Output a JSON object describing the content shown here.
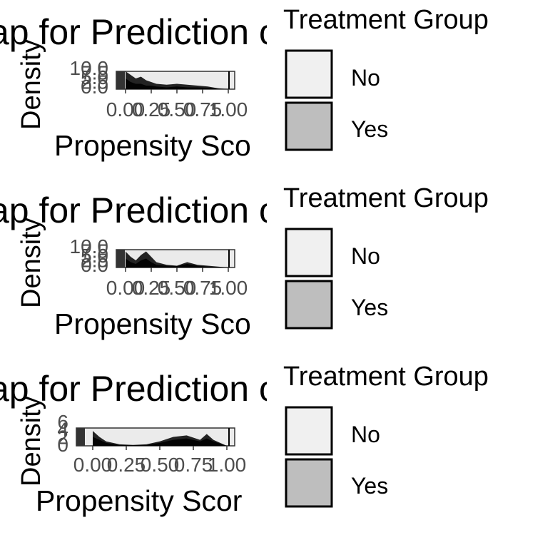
{
  "panels": [
    {
      "title": "ap for Prediction of Weekly Sport",
      "ylabel": "Density",
      "xlabel": "Propensity Sco",
      "legend_title": "Treatment Group",
      "legend_items": [
        "No",
        "Yes"
      ]
    },
    {
      "title": "ap for Prediction of Monthly Sport",
      "ylabel": "Density",
      "xlabel": "Propensity Sco",
      "legend_title": "Treatment Group",
      "legend_items": [
        "No",
        "Yes"
      ]
    },
    {
      "title": "ap for Prediction of No Sport Par",
      "ylabel": "Density",
      "xlabel": "Propensity Scor",
      "legend_title": "Treatment Group",
      "legend_items": [
        "No",
        "Yes"
      ]
    }
  ],
  "colors": {
    "No": "#f0f0f0",
    "Yes": "#bebebe",
    "outline": "#000000",
    "tick_text": "#4d4d4d"
  },
  "chart_data": [
    {
      "type": "area",
      "title": "ap for Prediction of Weekly Sport",
      "xlabel": "Propensity Sco",
      "ylabel": "Density",
      "x_ticks": [
        "0.00",
        "0.25",
        "0.50",
        "0.75",
        "1.00"
      ],
      "y_ticks": [
        "0.0",
        "2.5",
        "5.0",
        "7.5",
        "10.0"
      ],
      "xlim": [
        0,
        1
      ],
      "ylim": [
        0,
        10
      ],
      "legend": "right",
      "series": [
        {
          "name": "No",
          "x": [
            0.0,
            0.05,
            0.1,
            0.15,
            0.2,
            0.25,
            0.3,
            0.4,
            0.5,
            0.6,
            0.7,
            0.8,
            0.9,
            1.0
          ],
          "values": [
            10,
            8,
            6,
            7,
            5,
            4,
            3,
            2.5,
            3,
            2.5,
            2,
            1.5,
            0.5,
            0
          ]
        },
        {
          "name": "Yes",
          "x": [
            0.0,
            0.05,
            0.1,
            0.15,
            0.2,
            0.25,
            0.3,
            0.4,
            0.5,
            0.6,
            0.7,
            0.8,
            0.9,
            1.0
          ],
          "values": [
            6,
            4,
            3,
            3,
            2,
            2,
            1.5,
            1,
            1.5,
            1,
            1,
            0.8,
            0.3,
            0
          ]
        }
      ]
    },
    {
      "type": "area",
      "title": "ap for Prediction of Monthly Sport",
      "xlabel": "Propensity Sco",
      "ylabel": "Density",
      "x_ticks": [
        "0.00",
        "0.25",
        "0.50",
        "0.75",
        "1.00"
      ],
      "y_ticks": [
        "0.0",
        "2.5",
        "5.0",
        "7.5",
        "10.0"
      ],
      "xlim": [
        0,
        1
      ],
      "ylim": [
        0,
        10
      ],
      "legend": "right",
      "series": [
        {
          "name": "No",
          "x": [
            0.0,
            0.05,
            0.1,
            0.15,
            0.2,
            0.25,
            0.3,
            0.4,
            0.5,
            0.6,
            0.7,
            0.8,
            0.9,
            1.0
          ],
          "values": [
            9,
            6,
            4,
            7,
            9,
            6,
            3,
            1.5,
            1,
            3,
            1.5,
            1,
            0.5,
            0
          ]
        },
        {
          "name": "Yes",
          "x": [
            0.0,
            0.05,
            0.1,
            0.15,
            0.2,
            0.25,
            0.3,
            0.4,
            0.5,
            0.6,
            0.7,
            0.8,
            0.9,
            1.0
          ],
          "values": [
            5,
            3,
            2,
            4,
            5,
            3,
            1.5,
            1,
            0.8,
            2,
            1,
            0.5,
            0.3,
            0
          ]
        }
      ]
    },
    {
      "type": "area",
      "title": "ap for Prediction of No Sport Par",
      "xlabel": "Propensity Scor",
      "ylabel": "Density",
      "x_ticks": [
        "0.00",
        "0.25",
        "0.50",
        "0.75",
        "1.00"
      ],
      "y_ticks": [
        "0",
        "2",
        "4",
        "6"
      ],
      "xlim": [
        0,
        1
      ],
      "ylim": [
        0,
        6
      ],
      "legend": "right",
      "series": [
        {
          "name": "No",
          "x": [
            0.0,
            0.05,
            0.1,
            0.2,
            0.3,
            0.4,
            0.5,
            0.6,
            0.7,
            0.8,
            0.85,
            0.9,
            1.0
          ],
          "values": [
            5,
            3,
            1.5,
            0.5,
            0.3,
            0.5,
            1.5,
            3,
            3.5,
            2,
            4,
            2,
            0
          ]
        },
        {
          "name": "Yes",
          "x": [
            0.0,
            0.05,
            0.1,
            0.2,
            0.3,
            0.4,
            0.5,
            0.6,
            0.7,
            0.8,
            0.85,
            0.9,
            1.0
          ],
          "values": [
            3,
            2,
            1,
            0.3,
            0.2,
            0.3,
            1,
            2,
            2.5,
            1.5,
            2.5,
            1.5,
            0
          ]
        }
      ]
    }
  ]
}
